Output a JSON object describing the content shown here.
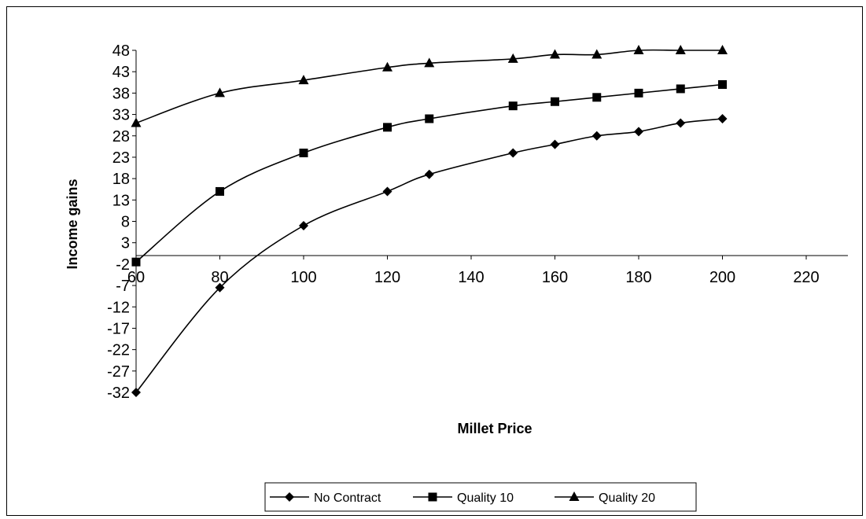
{
  "chart_data": {
    "type": "line",
    "title": "",
    "xlabel": "Millet Price",
    "ylabel": "Income gains",
    "xlim": [
      60,
      220
    ],
    "ylim": [
      -32,
      48
    ],
    "x_ticks": [
      60,
      80,
      100,
      120,
      140,
      160,
      180,
      200,
      220
    ],
    "x_tick_labels": [
      "60",
      "80",
      "100",
      "120",
      "140",
      "160",
      "180",
      "200",
      "220"
    ],
    "y_ticks": [
      48,
      43,
      38,
      33,
      28,
      23,
      18,
      13,
      8,
      3,
      -2,
      -7,
      -12,
      -17,
      -22,
      -27,
      -32
    ],
    "y_tick_labels": [
      "48",
      "43",
      "38",
      "33",
      "28",
      "23",
      "18",
      "13",
      "8",
      "3",
      "-2",
      "-7",
      "-12",
      "-17",
      "-22",
      "-27",
      "-32"
    ],
    "x_axis_crosses_at": 0,
    "grid": false,
    "legend_position": "bottom",
    "series": [
      {
        "name": "No Contract",
        "marker": "diamond",
        "color": "#000000",
        "x": [
          60,
          80,
          100,
          120,
          130,
          150,
          160,
          170,
          180,
          190,
          200
        ],
        "y": [
          -32,
          -7.5,
          7,
          15,
          19,
          24,
          26,
          28,
          29,
          31,
          32
        ]
      },
      {
        "name": "Quality 10",
        "marker": "square",
        "color": "#000000",
        "x": [
          60,
          80,
          100,
          120,
          130,
          150,
          160,
          170,
          180,
          190,
          200
        ],
        "y": [
          -1.5,
          15,
          24,
          30,
          32,
          35,
          36,
          37,
          38,
          39,
          40
        ]
      },
      {
        "name": "Quality 20",
        "marker": "triangle",
        "color": "#000000",
        "x": [
          60,
          80,
          100,
          120,
          130,
          150,
          160,
          170,
          180,
          190,
          200
        ],
        "y": [
          31,
          38,
          41,
          44,
          45,
          46,
          47,
          47,
          48,
          48,
          48
        ]
      }
    ]
  }
}
